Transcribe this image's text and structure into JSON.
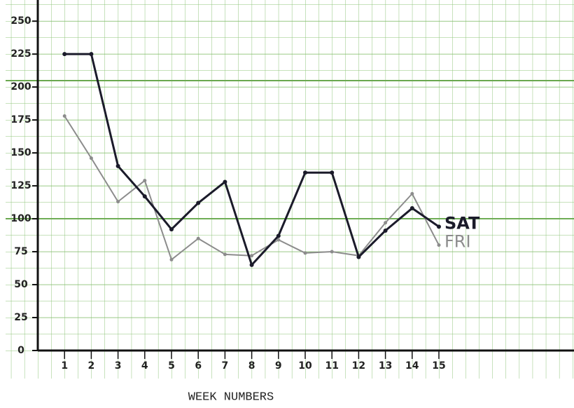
{
  "chart_data": {
    "type": "line",
    "x_label": "WEEK NUMBERS",
    "x": [
      1,
      2,
      3,
      4,
      5,
      6,
      7,
      8,
      9,
      10,
      11,
      12,
      13,
      14,
      15
    ],
    "series": [
      {
        "name": "SAT",
        "color": "#1b1b2a",
        "values": [
          225,
          225,
          140,
          117,
          92,
          112,
          128,
          65,
          87,
          135,
          135,
          71,
          91,
          108,
          94
        ]
      },
      {
        "name": "FRI",
        "color": "#8c8c8c",
        "values": [
          178,
          146,
          113,
          129,
          69,
          85,
          73,
          72,
          84,
          74,
          75,
          72,
          97,
          119,
          80
        ]
      }
    ],
    "xlim": [
      0,
      20
    ],
    "ylim": [
      0,
      265
    ],
    "xticks": [
      1,
      2,
      3,
      4,
      5,
      6,
      7,
      8,
      9,
      10,
      11,
      12,
      13,
      14,
      15
    ],
    "yticks": [
      0,
      25,
      50,
      75,
      100,
      125,
      150,
      175,
      200,
      225,
      250
    ],
    "grid": true
  }
}
